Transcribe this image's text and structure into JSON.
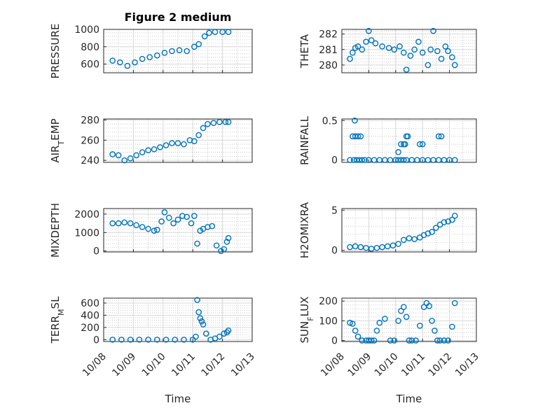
{
  "figure": {
    "title": "Figure 2 medium"
  },
  "style": {
    "marker_color": "#0072BD",
    "marker": "circle-open",
    "grid": true,
    "minor_grid": true
  },
  "chart_data": [
    {
      "type": "scatter",
      "id": "pressure",
      "position": "row1-left",
      "title": "Figure 2 medium",
      "ylabel": "PRESSURE",
      "xlabel": "",
      "ylim": [
        500,
        1000
      ],
      "yticks": [
        600,
        800,
        1000
      ],
      "xlim": [
        0,
        5
      ],
      "xticks": [
        0,
        1,
        2,
        3,
        4,
        5
      ],
      "x": [
        0.3,
        0.55,
        0.8,
        1.05,
        1.3,
        1.55,
        1.8,
        2.05,
        2.3,
        2.55,
        2.8,
        3.05,
        3.2,
        3.4,
        3.55,
        3.75,
        4.0,
        4.2
      ],
      "y": [
        640,
        620,
        580,
        620,
        660,
        680,
        700,
        730,
        750,
        760,
        750,
        800,
        830,
        920,
        960,
        970,
        970,
        970
      ]
    },
    {
      "type": "scatter",
      "id": "theta",
      "position": "row1-right",
      "ylabel": "THETA",
      "xlabel": "",
      "ylim": [
        279.5,
        282.3
      ],
      "yticks": [
        280,
        281,
        282
      ],
      "xlim": [
        0,
        5
      ],
      "xticks": [
        0,
        1,
        2,
        3,
        4,
        5
      ],
      "x": [
        0.3,
        0.4,
        0.5,
        0.6,
        0.75,
        0.9,
        1.0,
        1.1,
        1.25,
        1.5,
        1.75,
        1.95,
        2.15,
        2.3,
        2.4,
        2.55,
        2.7,
        2.85,
        3.0,
        3.2,
        3.3,
        3.4,
        3.55,
        3.7,
        3.85,
        3.95,
        4.1,
        4.2
      ],
      "y": [
        280.4,
        280.8,
        281.1,
        281.2,
        281.0,
        281.5,
        282.2,
        281.6,
        281.4,
        281.2,
        281.1,
        281.0,
        281.2,
        280.8,
        279.7,
        280.6,
        281.0,
        281.5,
        280.8,
        280.0,
        281.0,
        282.2,
        280.9,
        280.4,
        281.2,
        280.9,
        280.5,
        280.0
      ]
    },
    {
      "type": "scatter",
      "id": "air_temp",
      "position": "row2-left",
      "ylabel": "AIR_TEMP",
      "xlabel": "",
      "ylim": [
        238,
        281
      ],
      "yticks": [
        240,
        260,
        280
      ],
      "xlim": [
        0,
        5
      ],
      "xticks": [
        0,
        1,
        2,
        3,
        4,
        5
      ],
      "x": [
        0.3,
        0.5,
        0.7,
        0.9,
        1.1,
        1.3,
        1.5,
        1.7,
        1.9,
        2.1,
        2.3,
        2.5,
        2.7,
        2.9,
        3.05,
        3.2,
        3.35,
        3.5,
        3.7,
        3.9,
        4.1,
        4.2
      ],
      "y": [
        246,
        245,
        240,
        242,
        245,
        248,
        250,
        251,
        253,
        255,
        257,
        257,
        256,
        260,
        259,
        265,
        272,
        276,
        277,
        278,
        278,
        278
      ]
    },
    {
      "type": "scatter",
      "id": "rainfall",
      "position": "row2-right",
      "ylabel": "RAINFALL",
      "xlabel": "",
      "ylim": [
        -0.03,
        0.52
      ],
      "yticks": [
        0,
        0.5
      ],
      "xlim": [
        0,
        5
      ],
      "xticks": [
        0,
        1,
        2,
        3,
        4,
        5
      ],
      "x": [
        0.3,
        0.45,
        0.55,
        0.65,
        0.75,
        0.85,
        1.0,
        1.2,
        1.4,
        1.6,
        1.8,
        2.0,
        2.1,
        2.2,
        2.3,
        2.4,
        2.6,
        2.8,
        3.0,
        3.2,
        3.4,
        3.6,
        3.8,
        4.0,
        4.2,
        0.4,
        0.5,
        0.6,
        0.7,
        0.48,
        2.2,
        2.3,
        2.4,
        2.45,
        2.35,
        2.1,
        2.9,
        3.0,
        3.6,
        3.7
      ],
      "y": [
        0,
        0,
        0,
        0,
        0,
        0,
        0,
        0,
        0,
        0,
        0,
        0,
        0,
        0,
        0,
        0,
        0,
        0,
        0,
        0,
        0,
        0,
        0,
        0,
        0,
        0.3,
        0.3,
        0.3,
        0.3,
        0.5,
        0.2,
        0.2,
        0.3,
        0.3,
        0.2,
        0.1,
        0.2,
        0.2,
        0.3,
        0.3
      ]
    },
    {
      "type": "scatter",
      "id": "mixdepth",
      "position": "row3-left",
      "ylabel": "MIXDEPTH",
      "xlabel": "",
      "ylim": [
        -50,
        2300
      ],
      "yticks": [
        0,
        1000,
        2000
      ],
      "xlim": [
        0,
        5
      ],
      "xticks": [
        0,
        1,
        2,
        3,
        4,
        5
      ],
      "x": [
        0.3,
        0.5,
        0.7,
        0.9,
        1.1,
        1.3,
        1.5,
        1.7,
        1.8,
        1.95,
        2.05,
        2.2,
        2.35,
        2.5,
        2.65,
        2.8,
        2.95,
        3.05,
        3.15,
        3.25,
        3.35,
        3.5,
        3.65,
        3.8,
        3.95,
        4.05,
        4.15,
        4.2
      ],
      "y": [
        1500,
        1500,
        1550,
        1500,
        1400,
        1300,
        1200,
        1100,
        1150,
        1600,
        2100,
        1800,
        1500,
        1700,
        1900,
        1850,
        1500,
        1900,
        400,
        1100,
        1200,
        1300,
        1350,
        300,
        0,
        100,
        500,
        700
      ]
    },
    {
      "type": "scatter",
      "id": "h2omixra",
      "position": "row3-right",
      "ylabel": "H2OMIXRA",
      "xlabel": "",
      "ylim": [
        -0.2,
        5.2
      ],
      "yticks": [
        0,
        5
      ],
      "xlim": [
        0,
        5
      ],
      "xticks": [
        0,
        1,
        2,
        3,
        4,
        5
      ],
      "x": [
        0.3,
        0.5,
        0.7,
        0.9,
        1.1,
        1.3,
        1.5,
        1.7,
        1.9,
        2.1,
        2.3,
        2.5,
        2.7,
        2.9,
        3.05,
        3.2,
        3.35,
        3.5,
        3.65,
        3.8,
        3.95,
        4.1,
        4.2
      ],
      "y": [
        0.4,
        0.5,
        0.4,
        0.3,
        0.2,
        0.3,
        0.4,
        0.5,
        0.6,
        0.8,
        1.3,
        1.5,
        1.4,
        1.6,
        1.9,
        2.1,
        2.3,
        2.8,
        3.2,
        3.5,
        3.6,
        3.8,
        4.3
      ]
    },
    {
      "type": "scatter",
      "id": "terr_msl",
      "position": "row4-left",
      "ylabel": "TERR_MSL",
      "xlabel": "Time",
      "ylim": [
        -30,
        680
      ],
      "yticks": [
        0,
        200,
        400,
        600
      ],
      "xlim": [
        0,
        5
      ],
      "xticks": [
        0,
        1,
        2,
        3,
        4,
        5
      ],
      "xticklabels": [
        "10/08",
        "10/09",
        "10/10",
        "10/11",
        "10/12",
        "10/13"
      ],
      "x": [
        0.3,
        0.6,
        0.9,
        1.2,
        1.5,
        1.8,
        2.1,
        2.4,
        2.7,
        3.0,
        3.1,
        3.15,
        3.2,
        3.25,
        3.3,
        3.35,
        3.45,
        3.6,
        3.75,
        3.9,
        4.05,
        4.15,
        4.2
      ],
      "y": [
        0,
        0,
        0,
        0,
        0,
        0,
        0,
        0,
        0,
        0,
        50,
        650,
        450,
        350,
        300,
        250,
        100,
        0,
        20,
        50,
        100,
        120,
        150
      ]
    },
    {
      "type": "scatter",
      "id": "sun_flux",
      "position": "row4-right",
      "ylabel": "SUN_FLUX",
      "xlabel": "Time",
      "ylim": [
        -5,
        215
      ],
      "yticks": [
        0,
        100,
        200
      ],
      "xlim": [
        0,
        5
      ],
      "xticks": [
        0,
        1,
        2,
        3,
        4,
        5
      ],
      "xticklabels": [
        "10/08",
        "10/09",
        "10/10",
        "10/11",
        "10/12",
        "10/13"
      ],
      "x": [
        0.3,
        0.4,
        0.5,
        0.6,
        0.75,
        0.9,
        1.0,
        1.1,
        1.2,
        1.3,
        1.4,
        1.6,
        1.8,
        1.95,
        2.1,
        2.2,
        2.3,
        2.4,
        2.5,
        2.6,
        2.75,
        2.9,
        3.05,
        3.15,
        3.25,
        3.35,
        3.45,
        3.55,
        3.65,
        3.8,
        3.95,
        4.1,
        4.2
      ],
      "y": [
        90,
        85,
        50,
        20,
        0,
        0,
        0,
        0,
        0,
        50,
        90,
        110,
        0,
        0,
        100,
        150,
        170,
        120,
        0,
        0,
        0,
        75,
        170,
        190,
        175,
        100,
        50,
        0,
        0,
        0,
        0,
        70,
        190
      ]
    }
  ]
}
